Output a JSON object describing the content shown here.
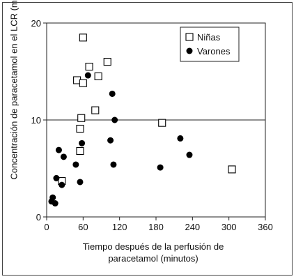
{
  "chart_data": {
    "type": "scatter",
    "xlabel_lines": [
      "Tiempo después de la perfusión de",
      "paracetamol (minutos)"
    ],
    "ylabel": "Concentración de paracetamol en el LCR (mg/l)",
    "xlim": [
      0,
      360
    ],
    "ylim": [
      0,
      20
    ],
    "x_ticks": [
      "0",
      "60",
      "120",
      "180",
      "240",
      "300",
      "360"
    ],
    "y_ticks": [
      "0",
      "10",
      "20"
    ],
    "reference_line_y": 10,
    "legend_position": "top-right",
    "series": [
      {
        "name": "Niñas",
        "marker": "open-square",
        "color": "#000000",
        "points": [
          [
            60,
            18.5
          ],
          [
            100,
            16.0
          ],
          [
            70,
            15.5
          ],
          [
            50,
            14.1
          ],
          [
            85,
            14.5
          ],
          [
            60,
            13.8
          ],
          [
            80,
            11.0
          ],
          [
            57,
            10.2
          ],
          [
            55,
            9.1
          ],
          [
            55,
            6.8
          ],
          [
            25,
            3.7
          ],
          [
            190,
            9.7
          ],
          [
            305,
            4.9
          ]
        ]
      },
      {
        "name": "Varones",
        "marker": "filled-circle",
        "color": "#000000",
        "points": [
          [
            68,
            14.6
          ],
          [
            108,
            12.7
          ],
          [
            112,
            10.0
          ],
          [
            20,
            6.9
          ],
          [
            28,
            6.2
          ],
          [
            58,
            7.6
          ],
          [
            105,
            7.9
          ],
          [
            48,
            5.4
          ],
          [
            110,
            5.4
          ],
          [
            16,
            4.0
          ],
          [
            55,
            3.6
          ],
          [
            25,
            3.3
          ],
          [
            10,
            2.0
          ],
          [
            8,
            1.6
          ],
          [
            14,
            1.4
          ],
          [
            220,
            8.1
          ],
          [
            235,
            6.4
          ],
          [
            187,
            5.1
          ]
        ]
      }
    ]
  }
}
